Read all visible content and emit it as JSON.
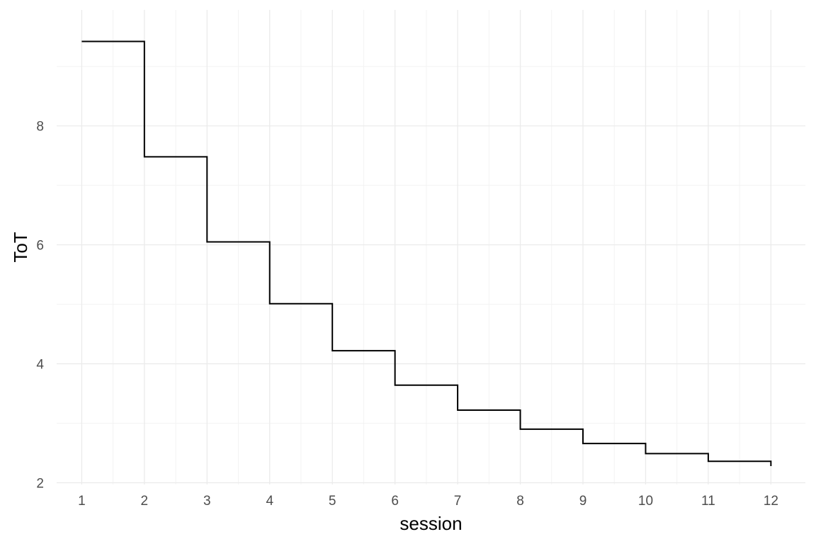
{
  "chart_data": {
    "type": "line",
    "style": "step",
    "xlabel": "session",
    "ylabel": "ToT",
    "x": [
      1,
      2,
      3,
      4,
      5,
      6,
      7,
      8,
      9,
      10,
      11,
      12
    ],
    "series": [
      {
        "values": [
          9.42,
          7.48,
          6.05,
          5.01,
          4.22,
          3.64,
          3.22,
          2.9,
          2.66,
          2.49,
          2.36,
          2.28
        ]
      }
    ],
    "xlim": [
      0.6,
      12.55
    ],
    "ylim": [
      1.97,
      9.95
    ],
    "xticks": [
      1,
      2,
      3,
      4,
      5,
      6,
      7,
      8,
      9,
      10,
      11,
      12
    ],
    "yticks": [
      2,
      4,
      6,
      8
    ],
    "grid": true,
    "colors": {
      "line": "#000000",
      "grid_major": "#ebebeb",
      "grid_minor": "#f3f3f3",
      "tick_text": "#4d4d4d"
    }
  }
}
